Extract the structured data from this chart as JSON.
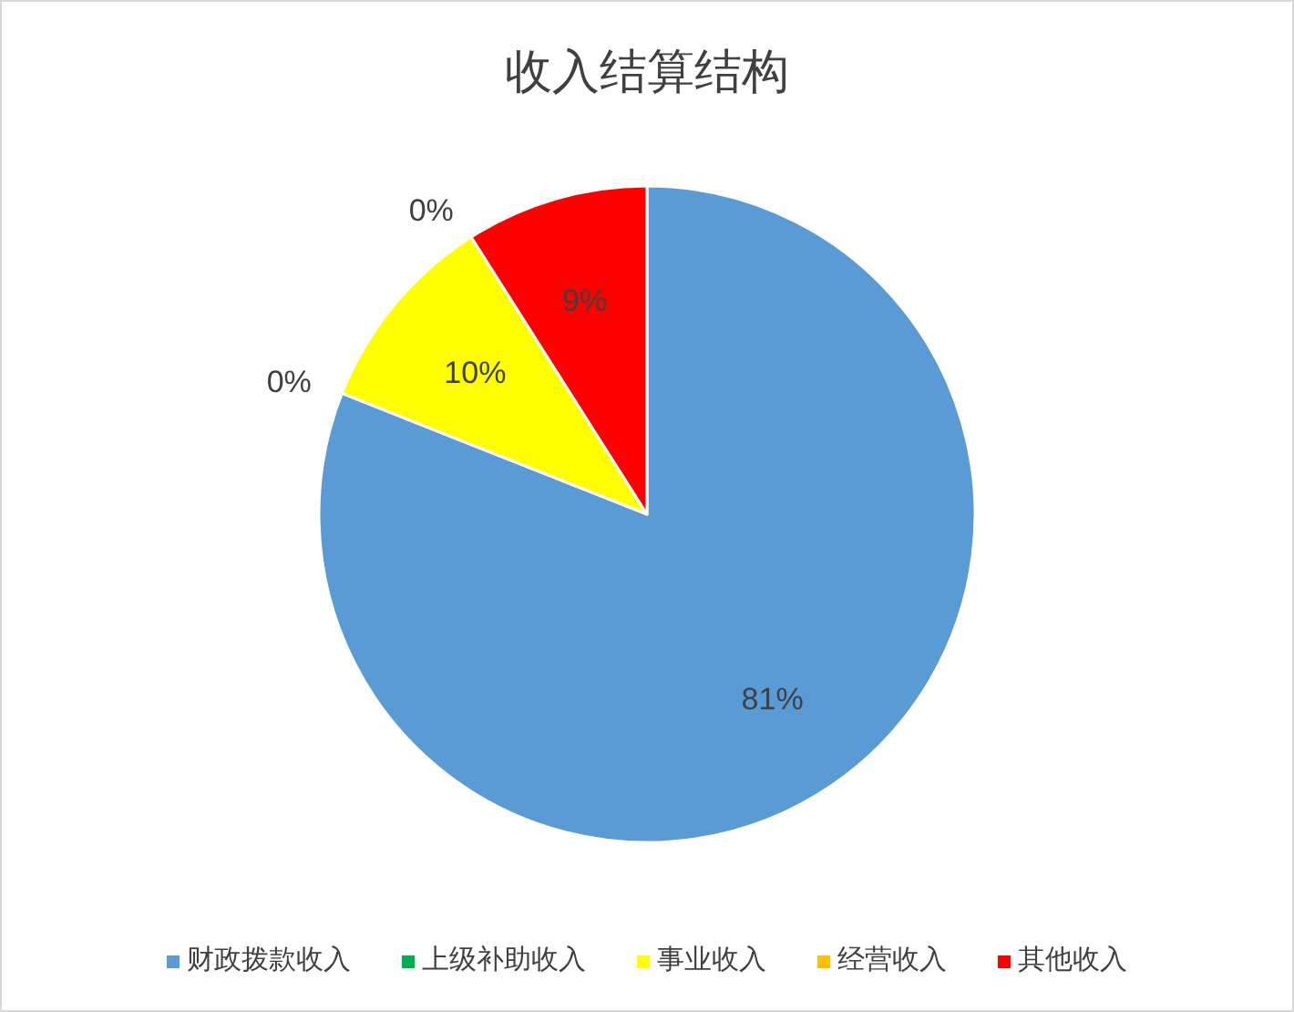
{
  "chart_data": {
    "type": "pie",
    "title": "收入结算结构",
    "categories": [
      "财政拨款收入",
      "上级补助收入",
      "事业收入",
      "经营收入",
      "其他收入"
    ],
    "values": [
      81,
      0,
      10,
      0,
      9
    ],
    "value_labels": [
      "81%",
      "0%",
      "10%",
      "0%",
      "9%"
    ],
    "colors": [
      "#5b9bd5",
      "#00b050",
      "#ffff00",
      "#ffc000",
      "#ff0000"
    ],
    "legend": "bottom"
  }
}
